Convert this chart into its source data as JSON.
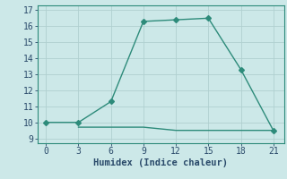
{
  "xlabel": "Humidex (Indice chaleur)",
  "line1_x": [
    0,
    3,
    6,
    9,
    12,
    15,
    18,
    21
  ],
  "line1_y": [
    10.0,
    10.0,
    11.3,
    16.3,
    16.4,
    16.5,
    13.3,
    9.5
  ],
  "line2_x": [
    3,
    6,
    9,
    12,
    15,
    18,
    21
  ],
  "line2_y": [
    9.7,
    9.7,
    9.7,
    9.5,
    9.5,
    9.5,
    9.5
  ],
  "line_color": "#2d8b7a",
  "bg_color": "#cce8e8",
  "grid_color": "#b0d0d0",
  "ylim": [
    8.7,
    17.3
  ],
  "xlim": [
    -0.8,
    22.0
  ],
  "xticks": [
    0,
    3,
    6,
    9,
    12,
    15,
    18,
    21
  ],
  "yticks": [
    9,
    10,
    11,
    12,
    13,
    14,
    15,
    16,
    17
  ],
  "markersize": 3.0,
  "linewidth": 1.0,
  "font_color": "#2a4a6a",
  "xlabel_fontsize": 7.5,
  "tick_fontsize": 7.0
}
